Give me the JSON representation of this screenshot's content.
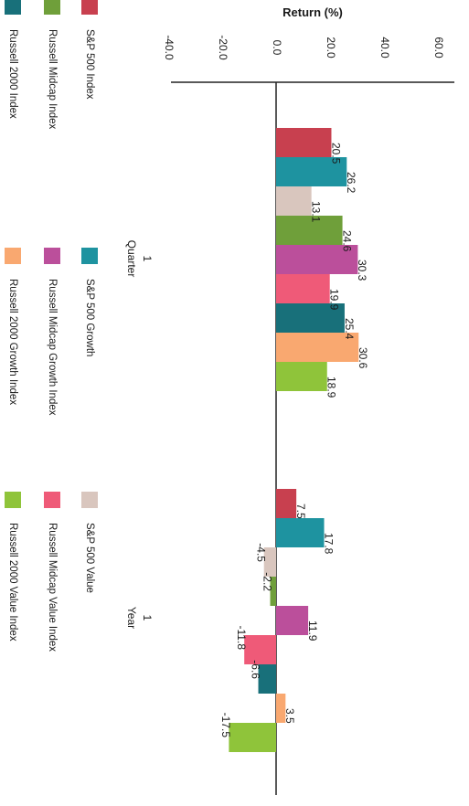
{
  "chart_data": {
    "type": "bar",
    "orientation": "rotated-90-clockwise",
    "ylabel": "Return (%)",
    "xlabel": "",
    "ylim": [
      -40,
      60
    ],
    "y_ticks": [
      "-40.0",
      "-20.0",
      "0.0",
      "20.0",
      "40.0",
      "60.0"
    ],
    "categories": [
      "Quarter",
      "Year"
    ],
    "category_numbers": [
      "1",
      "1"
    ],
    "grid": false,
    "legend_position": "bottom",
    "series": [
      {
        "name": "S&P 500 Index",
        "color": "#c8404f",
        "values": [
          20.5,
          7.5
        ]
      },
      {
        "name": "S&P 500 Growth",
        "color": "#1e93a0",
        "values": [
          26.2,
          17.8
        ]
      },
      {
        "name": "S&P 500 Value",
        "color": "#d9c6be",
        "values": [
          13.1,
          -4.5
        ]
      },
      {
        "name": "Russell Midcap Index",
        "color": "#6f9f3a",
        "values": [
          24.6,
          -2.2
        ]
      },
      {
        "name": "Russell Midcap Growth Index",
        "color": "#bb4f9b",
        "values": [
          30.3,
          11.9
        ]
      },
      {
        "name": "Russell Midcap Value Index",
        "color": "#ef5a78",
        "values": [
          19.9,
          -11.8
        ]
      },
      {
        "name": "Russell 2000 Index",
        "color": "#18707a",
        "values": [
          25.4,
          -6.6
        ]
      },
      {
        "name": "Russell 2000 Growth Index",
        "color": "#f9a870",
        "values": [
          30.6,
          3.5
        ]
      },
      {
        "name": "Russell 2000 Value Index",
        "color": "#8fc43a",
        "values": [
          18.9,
          -17.5
        ]
      }
    ]
  }
}
